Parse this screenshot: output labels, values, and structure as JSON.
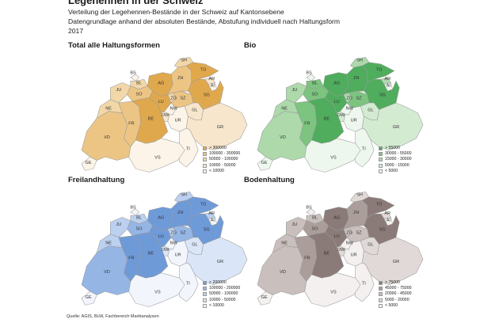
{
  "header": {
    "title": "Legehennen in der Schweiz",
    "line1": "Verteilung der Legehennen-Bestände in der Schweiz auf Kantonsebene",
    "line2": "Datengrundlage anhand der absoluten Bestände, Abstufung individuell nach Haltungsform",
    "line3": "2017"
  },
  "source": "Quelle: AGIS, BLW, Fachbereich Marktanalysen",
  "cantons": [
    "SH",
    "BS",
    "BL",
    "TG",
    "JU",
    "AG",
    "ZH",
    "AR",
    "AI",
    "SO",
    "SG",
    "NE",
    "LU",
    "ZG",
    "SZ",
    "GL",
    "BE",
    "OW",
    "NW",
    "FR",
    "UR",
    "GR",
    "VD",
    "TI",
    "GE",
    "VS"
  ],
  "maps": [
    {
      "title": "Total alle Haltungsformen",
      "legend": [
        "> 300000",
        "100000 - 300000",
        "50000 - 100000",
        "10000 - 50000",
        "< 10000"
      ],
      "colors": [
        "#e0a84d",
        "#ecc585",
        "#f2d7a9",
        "#f7e6cc",
        "#fcf4e8"
      ],
      "classes": {
        "SH": 2,
        "BS": 4,
        "BL": 2,
        "TG": 0,
        "JU": 2,
        "AG": 0,
        "ZH": 1,
        "AR": 3,
        "AI": 4,
        "SO": 1,
        "SG": 0,
        "NE": 2,
        "LU": 0,
        "ZG": 2,
        "SZ": 1,
        "GL": 3,
        "BE": 0,
        "OW": 3,
        "NW": 4,
        "FR": 1,
        "UR": 4,
        "GR": 3,
        "VD": 1,
        "TI": 4,
        "GE": 4,
        "VS": 4
      }
    },
    {
      "title": "Bio",
      "legend": [
        "> 55000",
        "30000 - 55000",
        "15000 - 30000",
        "5000 - 15000",
        "< 5000"
      ],
      "colors": [
        "#4fad5d",
        "#7cc47f",
        "#add9ab",
        "#d3ebd1",
        "#eef7ed"
      ],
      "classes": {
        "SH": 2,
        "BS": 4,
        "BL": 1,
        "TG": 0,
        "JU": 2,
        "AG": 0,
        "ZH": 0,
        "AR": 2,
        "AI": 4,
        "SO": 1,
        "SG": 0,
        "NE": 2,
        "LU": 0,
        "ZG": 2,
        "SZ": 1,
        "GL": 3,
        "BE": 0,
        "OW": 3,
        "NW": 4,
        "FR": 1,
        "UR": 4,
        "GR": 3,
        "VD": 2,
        "TI": 4,
        "GE": 4,
        "VS": 4
      }
    },
    {
      "title": "Freilandhaltung",
      "legend": [
        "> 200000",
        "100000 - 200000",
        "50000 - 100000",
        "10000 - 50000",
        "< 10000"
      ],
      "colors": [
        "#6f9ad8",
        "#95b6e5",
        "#bcd0ef",
        "#dae6f7",
        "#f2f6fc"
      ],
      "classes": {
        "SH": 2,
        "BS": 4,
        "BL": 2,
        "TG": 0,
        "JU": 2,
        "AG": 0,
        "ZH": 0,
        "AR": 2,
        "AI": 4,
        "SO": 1,
        "SG": 0,
        "NE": 2,
        "LU": 0,
        "ZG": 2,
        "SZ": 1,
        "GL": 3,
        "BE": 0,
        "OW": 3,
        "NW": 4,
        "FR": 0,
        "UR": 4,
        "GR": 3,
        "VD": 1,
        "TI": 4,
        "GE": 4,
        "VS": 4
      }
    },
    {
      "title": "Bodenhaltung",
      "legend": [
        "> 75000",
        "45000 - 75000",
        "20000 - 45000",
        "5000 - 20000",
        "< 5000"
      ],
      "colors": [
        "#8b7b78",
        "#ab9e9a",
        "#c9bfbc",
        "#e0d9d7",
        "#f3f0ef"
      ],
      "classes": {
        "SH": 3,
        "BS": 4,
        "BL": 2,
        "TG": 0,
        "JU": 2,
        "AG": 0,
        "ZH": 1,
        "AR": 3,
        "AI": 4,
        "SO": 1,
        "SG": 0,
        "NE": 2,
        "LU": 0,
        "ZG": 2,
        "SZ": 2,
        "GL": 3,
        "BE": 0,
        "OW": 3,
        "NW": 4,
        "FR": 1,
        "UR": 4,
        "GR": 3,
        "VD": 2,
        "TI": 4,
        "GE": 4,
        "VS": 4
      }
    }
  ]
}
